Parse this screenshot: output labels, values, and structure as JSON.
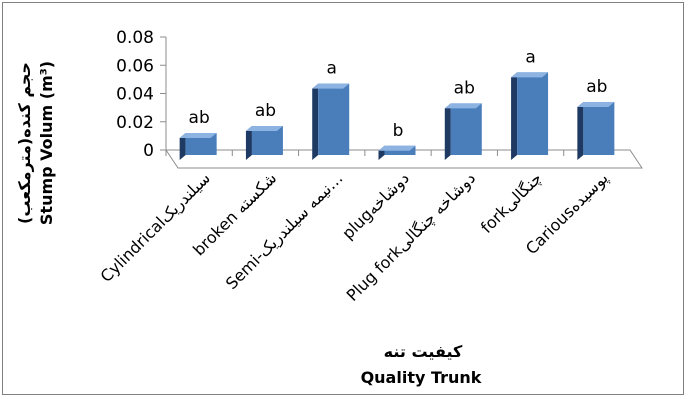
{
  "chart_data": {
    "type": "bar",
    "categories": [
      "Cylindricalسیلندریک",
      "broken  شکسته",
      "Semi-نیمه سیلندریک…",
      "plugدوشاخه",
      "Plug forkدوشاخه چنگالی",
      "forkچنگالی",
      "Cariousپوسیده"
    ],
    "values": [
      0.012,
      0.017,
      0.047,
      0.003,
      0.033,
      0.055,
      0.034
    ],
    "significance": [
      "ab",
      "ab",
      "a",
      "b",
      "ab",
      "a",
      "ab"
    ],
    "ylim": [
      0,
      0.08
    ],
    "yticks": [
      "0",
      "0.02",
      "0.04",
      "0.06",
      "0.08"
    ],
    "ylabel_line1": "حجم کنده(مترمکعب)",
    "ylabel_line2": "Stump Volum (m³)",
    "xlabel_line1": "کیفیت تنه",
    "xlabel_line2": "Quality  Trunk",
    "grid": false,
    "legend": "none",
    "colors": {
      "front": "#4a7ebb",
      "side": "#1f3a62",
      "top": "#8db3e2"
    }
  }
}
